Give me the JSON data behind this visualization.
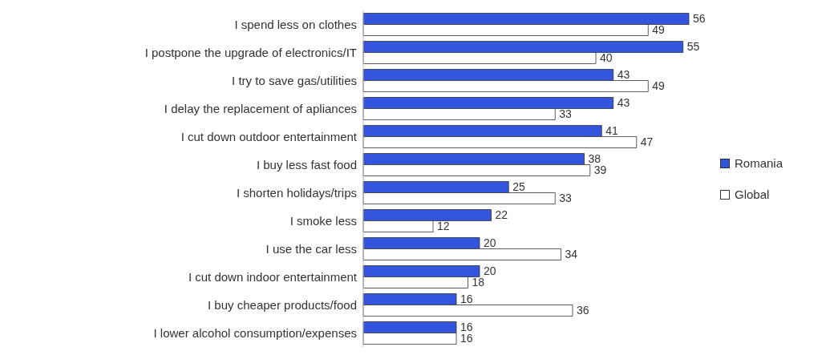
{
  "chart_data": {
    "type": "bar",
    "orientation": "horizontal",
    "categories": [
      "I spend less on clothes",
      "I postpone the upgrade of electronics/IT",
      "I try to save gas/utilities",
      "I delay the replacement of apliances",
      "I cut down outdoor entertainment",
      "I buy less fast food",
      "I shorten holidays/trips",
      "I smoke less",
      "I use the car less",
      "I cut down indoor entertainment",
      "I buy cheaper products/food",
      "I lower alcohol consumption/expenses"
    ],
    "series": [
      {
        "name": "Romania",
        "color": "#3355dd",
        "values": [
          56,
          55,
          43,
          43,
          41,
          38,
          25,
          22,
          20,
          20,
          16,
          16
        ]
      },
      {
        "name": "Global",
        "color": "#ffffff",
        "values": [
          49,
          40,
          49,
          33,
          47,
          39,
          33,
          12,
          34,
          18,
          36,
          16
        ]
      }
    ],
    "data_labels": true,
    "legend": "right",
    "grid": false
  }
}
